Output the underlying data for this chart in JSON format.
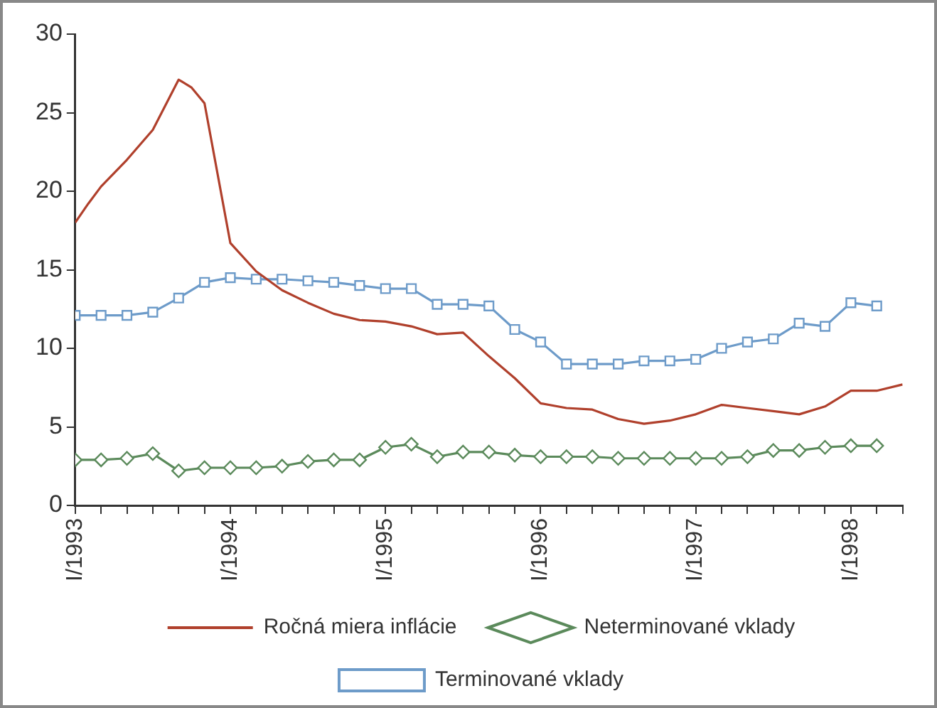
{
  "chart_data": {
    "type": "line",
    "xlim": [
      "1993-01",
      "1998-05"
    ],
    "xticks": [
      {
        "value": "1993-01",
        "label": "I/1993"
      },
      {
        "value": "1993-03",
        "label": null
      },
      {
        "value": "1993-05",
        "label": null
      },
      {
        "value": "1993-07",
        "label": null
      },
      {
        "value": "1993-09",
        "label": null
      },
      {
        "value": "1993-11",
        "label": null
      },
      {
        "value": "1994-01",
        "label": "I/1994"
      },
      {
        "value": "1994-03",
        "label": null
      },
      {
        "value": "1994-05",
        "label": null
      },
      {
        "value": "1994-07",
        "label": null
      },
      {
        "value": "1994-09",
        "label": null
      },
      {
        "value": "1994-11",
        "label": null
      },
      {
        "value": "1995-01",
        "label": "I/1995"
      },
      {
        "value": "1995-03",
        "label": null
      },
      {
        "value": "1995-05",
        "label": null
      },
      {
        "value": "1995-07",
        "label": null
      },
      {
        "value": "1995-09",
        "label": null
      },
      {
        "value": "1995-11",
        "label": null
      },
      {
        "value": "1996-01",
        "label": "I/1996"
      },
      {
        "value": "1996-03",
        "label": null
      },
      {
        "value": "1996-05",
        "label": null
      },
      {
        "value": "1996-07",
        "label": null
      },
      {
        "value": "1996-09",
        "label": null
      },
      {
        "value": "1996-11",
        "label": null
      },
      {
        "value": "1997-01",
        "label": "I/1997"
      },
      {
        "value": "1997-03",
        "label": null
      },
      {
        "value": "1997-05",
        "label": null
      },
      {
        "value": "1997-07",
        "label": null
      },
      {
        "value": "1997-09",
        "label": null
      },
      {
        "value": "1997-11",
        "label": null
      },
      {
        "value": "1998-01",
        "label": "I/1998"
      },
      {
        "value": "1998-03",
        "label": null
      },
      {
        "value": "1998-05",
        "label": null
      }
    ],
    "ylim": [
      0,
      30
    ],
    "yticks": [
      0,
      5,
      10,
      15,
      20,
      25,
      30
    ],
    "grid": false,
    "legend": "bottom",
    "line_style": "solid",
    "series": [
      {
        "name": "Ročná miera inflácie",
        "color": "#b0402c",
        "marker": "none",
        "x": [
          "1993-01",
          "1993-02",
          "1993-03",
          "1993-05",
          "1993-07",
          "1993-09",
          "1993-10",
          "1993-11",
          "1994-01",
          "1994-03",
          "1994-05",
          "1994-07",
          "1994-09",
          "1994-11",
          "1995-01",
          "1995-03",
          "1995-05",
          "1995-07",
          "1995-09",
          "1995-11",
          "1996-01",
          "1996-03",
          "1996-05",
          "1996-07",
          "1996-09",
          "1996-11",
          "1997-01",
          "1997-03",
          "1997-05",
          "1997-07",
          "1997-09",
          "1997-11",
          "1998-01",
          "1998-03",
          "1998-05"
        ],
        "values": [
          18.0,
          19.2,
          20.3,
          22.0,
          23.9,
          27.1,
          26.6,
          25.6,
          16.7,
          14.9,
          13.7,
          12.9,
          12.2,
          11.8,
          11.7,
          11.4,
          10.9,
          11.0,
          9.5,
          8.1,
          6.5,
          6.2,
          6.1,
          5.5,
          5.2,
          5.4,
          5.8,
          6.4,
          6.2,
          6.0,
          5.8,
          6.3,
          7.3,
          7.3,
          7.7
        ]
      },
      {
        "name": "Neterminované vklady",
        "color": "#5b8a5b",
        "marker": "diamond",
        "x": [
          "1993-01",
          "1993-03",
          "1993-05",
          "1993-07",
          "1993-09",
          "1993-11",
          "1994-01",
          "1994-03",
          "1994-05",
          "1994-07",
          "1994-09",
          "1994-11",
          "1995-01",
          "1995-03",
          "1995-05",
          "1995-07",
          "1995-09",
          "1995-11",
          "1996-01",
          "1996-03",
          "1996-05",
          "1996-07",
          "1996-09",
          "1996-11",
          "1997-01",
          "1997-03",
          "1997-05",
          "1997-07",
          "1997-09",
          "1997-11",
          "1998-01",
          "1998-03"
        ],
        "values": [
          2.9,
          2.9,
          3.0,
          3.3,
          2.2,
          2.4,
          2.4,
          2.4,
          2.5,
          2.8,
          2.9,
          2.9,
          3.7,
          3.9,
          3.1,
          3.4,
          3.4,
          3.2,
          3.1,
          3.1,
          3.1,
          3.0,
          3.0,
          3.0,
          3.0,
          3.0,
          3.1,
          3.5,
          3.5,
          3.7,
          3.8,
          3.8
        ]
      },
      {
        "name": "Terminované vklady",
        "color": "#6d9bc9",
        "marker": "square",
        "x": [
          "1993-01",
          "1993-03",
          "1993-05",
          "1993-07",
          "1993-09",
          "1993-11",
          "1994-01",
          "1994-03",
          "1994-05",
          "1994-07",
          "1994-09",
          "1994-11",
          "1995-01",
          "1995-03",
          "1995-05",
          "1995-07",
          "1995-09",
          "1995-11",
          "1996-01",
          "1996-03",
          "1996-05",
          "1996-07",
          "1996-09",
          "1996-11",
          "1997-01",
          "1997-03",
          "1997-05",
          "1997-07",
          "1997-09",
          "1997-11",
          "1998-01",
          "1998-03"
        ],
        "values": [
          12.1,
          12.1,
          12.1,
          12.3,
          13.2,
          14.2,
          14.5,
          14.4,
          14.4,
          14.3,
          14.2,
          14.0,
          13.8,
          13.8,
          12.8,
          12.8,
          12.7,
          11.2,
          10.4,
          9.0,
          9.0,
          9.0,
          9.2,
          9.2,
          9.3,
          10.0,
          10.4,
          10.6,
          11.6,
          11.4,
          12.9,
          12.7
        ]
      }
    ]
  }
}
